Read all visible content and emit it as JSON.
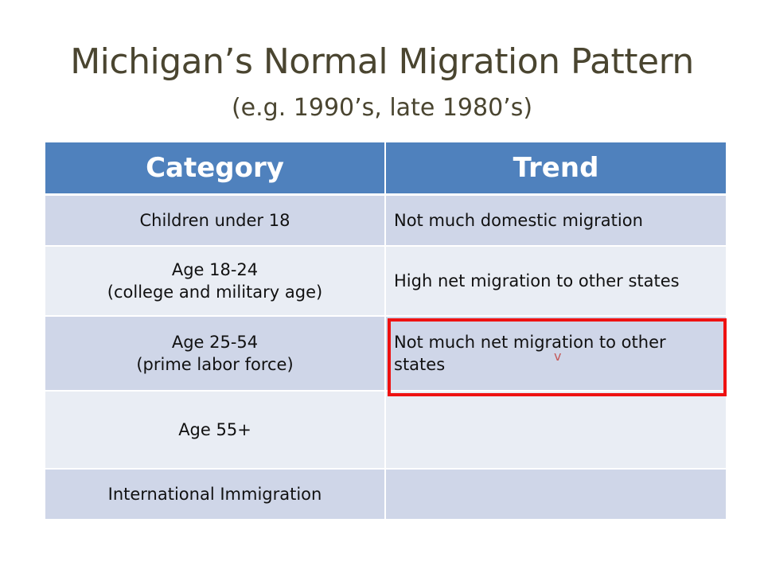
{
  "title": {
    "line1": "Michigan’s Normal Migration Pattern",
    "line2": "(e.g. 1990’s, late 1980’s)"
  },
  "table": {
    "headers": [
      "Category",
      "Trend"
    ],
    "rows": [
      {
        "category": [
          "Children under 18"
        ],
        "trend": "Not much domestic migration"
      },
      {
        "category": [
          "Age 18-24",
          "(college and military age)"
        ],
        "trend": "High net migration to other states"
      },
      {
        "category": [
          "Age 25-54",
          "(prime labor force)"
        ],
        "trend": "Not much net migration to other states"
      },
      {
        "category": [
          "Age 55+"
        ],
        "trend": ""
      },
      {
        "category": [
          "International Immigration"
        ],
        "trend": ""
      }
    ]
  },
  "highlight": {
    "color": "#ee1111",
    "target_row": 3,
    "mark": "v"
  },
  "colors": {
    "header_bg": "#4f81bd",
    "row_dark": "#cfd6e8",
    "row_light": "#e9edf4",
    "title": "#4a4530"
  }
}
